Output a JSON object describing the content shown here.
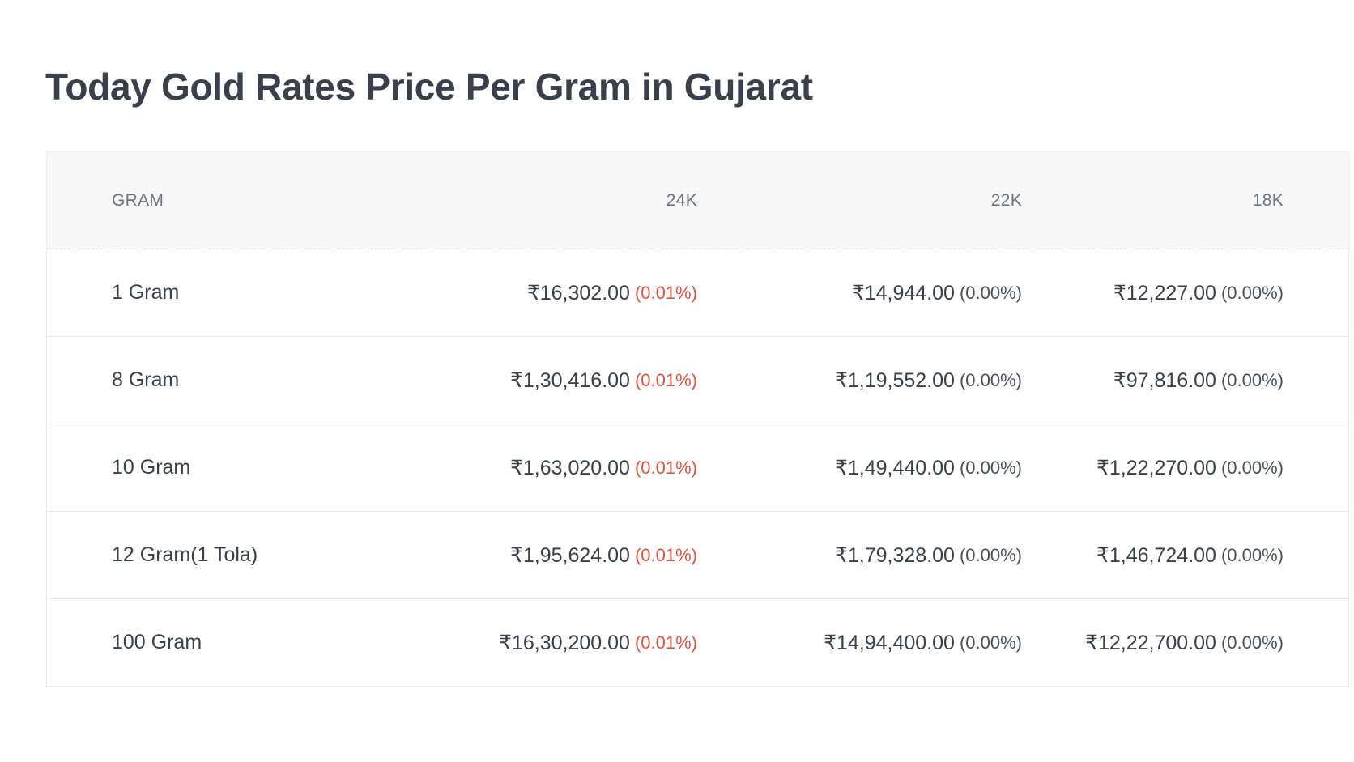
{
  "title": "Today Gold Rates Price Per Gram in Gujarat",
  "colors": {
    "change_up": "#e0533f",
    "change_neutral": "#4a4f5b",
    "header_bg": "#f7f7f7"
  },
  "table": {
    "headers": {
      "gram": "GRAM",
      "k24": "24K",
      "k22": "22K",
      "k18": "18K"
    },
    "rows": [
      {
        "gram": "1 Gram",
        "k24": {
          "price": "₹16,302.00",
          "change": "(0.01%)"
        },
        "k22": {
          "price": "₹14,944.00",
          "change": "(0.00%)"
        },
        "k18": {
          "price": "₹12,227.00",
          "change": "(0.00%)"
        }
      },
      {
        "gram": "8 Gram",
        "k24": {
          "price": "₹1,30,416.00",
          "change": "(0.01%)"
        },
        "k22": {
          "price": "₹1,19,552.00",
          "change": "(0.00%)"
        },
        "k18": {
          "price": "₹97,816.00",
          "change": "(0.00%)"
        }
      },
      {
        "gram": "10 Gram",
        "k24": {
          "price": "₹1,63,020.00",
          "change": "(0.01%)"
        },
        "k22": {
          "price": "₹1,49,440.00",
          "change": "(0.00%)"
        },
        "k18": {
          "price": "₹1,22,270.00",
          "change": "(0.00%)"
        }
      },
      {
        "gram": "12 Gram(1 Tola)",
        "k24": {
          "price": "₹1,95,624.00",
          "change": "(0.01%)"
        },
        "k22": {
          "price": "₹1,79,328.00",
          "change": "(0.00%)"
        },
        "k18": {
          "price": "₹1,46,724.00",
          "change": "(0.00%)"
        }
      },
      {
        "gram": "100 Gram",
        "k24": {
          "price": "₹16,30,200.00",
          "change": "(0.01%)"
        },
        "k22": {
          "price": "₹14,94,400.00",
          "change": "(0.00%)"
        },
        "k18": {
          "price": "₹12,22,700.00",
          "change": "(0.00%)"
        }
      }
    ]
  }
}
